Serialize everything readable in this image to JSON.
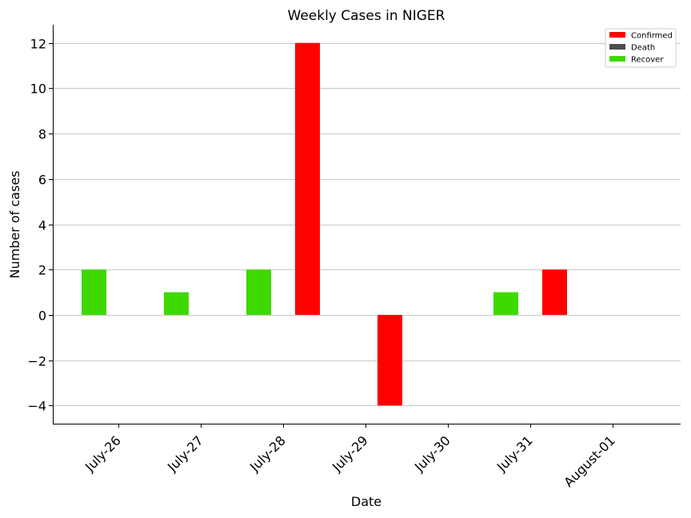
{
  "chart_data": {
    "type": "bar",
    "title": "Weekly Cases in NIGER",
    "xlabel": "Date",
    "ylabel": "Number of cases",
    "categories": [
      "July-26",
      "July-27",
      "July-28",
      "July-29",
      "July-30",
      "July-31",
      "August-01"
    ],
    "series": [
      {
        "name": "Confirmed",
        "color": "#ff0000",
        "values": [
          0,
          0,
          12,
          -4,
          0,
          2,
          0
        ]
      },
      {
        "name": "Death",
        "color": "#4d4d4d",
        "values": [
          0,
          0,
          0,
          0,
          0,
          0,
          0
        ]
      },
      {
        "name": "Recover",
        "color": "#3ed900",
        "values": [
          2,
          1,
          2,
          0,
          0,
          1,
          0
        ]
      }
    ],
    "ylim": [
      -4.8,
      12.8
    ],
    "yticks": [
      -4,
      -2,
      0,
      2,
      4,
      6,
      8,
      10,
      12
    ],
    "ytick_labels": [
      "−4",
      "−2",
      "0",
      "2",
      "4",
      "6",
      "8",
      "10",
      "12"
    ],
    "grid": "horizontal",
    "legend_position": "top-right"
  }
}
